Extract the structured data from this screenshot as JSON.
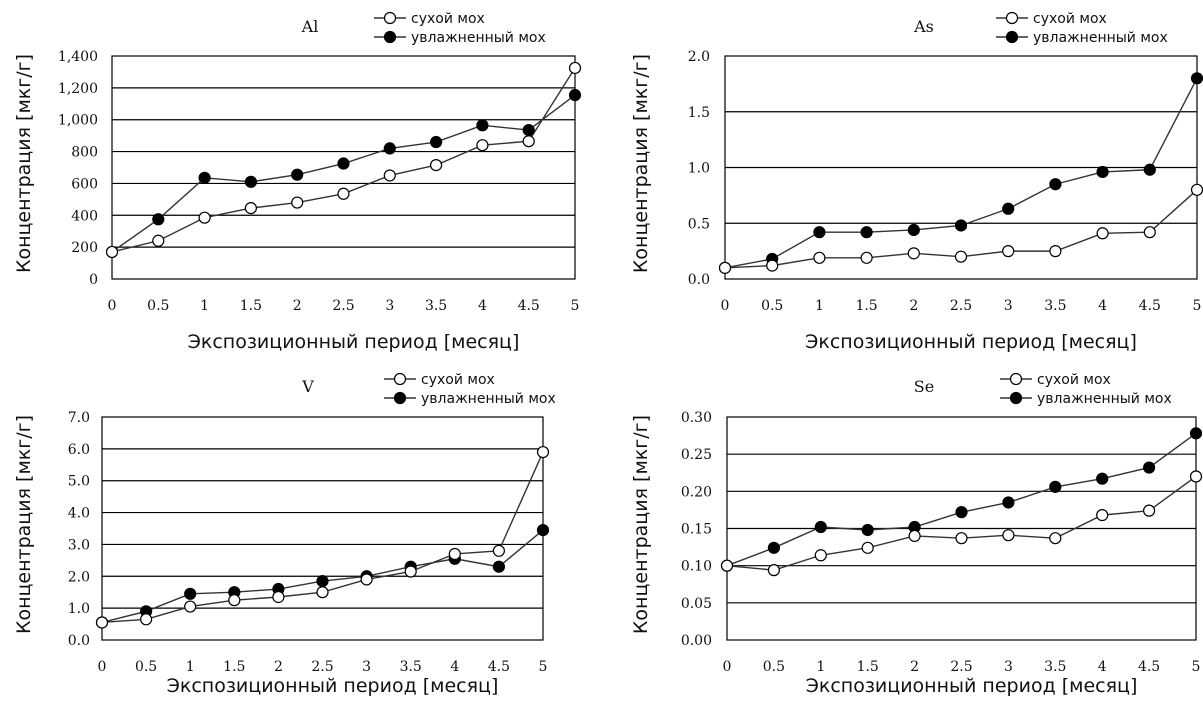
{
  "chart_data": [
    {
      "type": "line",
      "title": "Al",
      "xlabel": "Экспозиционный период [месяц]",
      "ylabel": "Концентрация [мкг/г]",
      "x": [
        0,
        0.5,
        1,
        1.5,
        2,
        2.5,
        3,
        3.5,
        4,
        4.5,
        5
      ],
      "x_tick_labels": [
        "0",
        "0.5",
        "1",
        "1.5",
        "2",
        "2.5",
        "3",
        "3.5",
        "4",
        "4.5",
        "5"
      ],
      "ylim": [
        0,
        1400
      ],
      "y_ticks": [
        0,
        200,
        400,
        600,
        800,
        1000,
        1200,
        1400
      ],
      "y_tick_labels": [
        "0",
        "200",
        "400",
        "600",
        "800",
        "1,000",
        "1,200",
        "1,400"
      ],
      "grid": "horizontal",
      "legend": "top-right",
      "series": [
        {
          "name": "сухой мох",
          "marker": "open",
          "values": [
            170,
            240,
            385,
            445,
            480,
            535,
            650,
            715,
            840,
            865,
            1325
          ]
        },
        {
          "name": "увлажненный мох",
          "marker": "filled",
          "values": [
            170,
            375,
            635,
            610,
            655,
            725,
            820,
            860,
            965,
            935,
            1155
          ]
        }
      ]
    },
    {
      "type": "line",
      "title": "As",
      "xlabel": "Экспозиционный период [месяц]",
      "ylabel": "Концентрация [мкг/г]",
      "x": [
        0,
        0.5,
        1,
        1.5,
        2,
        2.5,
        3,
        3.5,
        4,
        4.5,
        5
      ],
      "x_tick_labels": [
        "0",
        "0.5",
        "1",
        "1.5",
        "2",
        "2.5",
        "3",
        "3.5",
        "4",
        "4.5",
        "5"
      ],
      "ylim": [
        0,
        2.0
      ],
      "y_ticks": [
        0,
        0.5,
        1.0,
        1.5,
        2.0
      ],
      "y_tick_labels": [
        "0.0",
        "0.5",
        "1.0",
        "1.5",
        "2.0"
      ],
      "grid": "horizontal",
      "legend": "top-right",
      "series": [
        {
          "name": "сухой мох",
          "marker": "open",
          "values": [
            0.1,
            0.12,
            0.19,
            0.19,
            0.23,
            0.2,
            0.25,
            0.25,
            0.41,
            0.42,
            0.8
          ]
        },
        {
          "name": "увлажненный мох",
          "marker": "filled",
          "values": [
            0.1,
            0.18,
            0.42,
            0.42,
            0.44,
            0.48,
            0.63,
            0.85,
            0.96,
            0.98,
            1.8
          ]
        }
      ]
    },
    {
      "type": "line",
      "title": "V",
      "xlabel": "Экспозиционный период [месяц]",
      "ylabel": "Концентрация [мкг/г]",
      "x": [
        0,
        0.5,
        1,
        1.5,
        2,
        2.5,
        3,
        3.5,
        4,
        4.5,
        5
      ],
      "x_tick_labels": [
        "0",
        "0.5",
        "1",
        "1.5",
        "2",
        "2.5",
        "3",
        "3.5",
        "4",
        "4.5",
        "5"
      ],
      "ylim": [
        0,
        7.0
      ],
      "y_ticks": [
        0,
        1,
        2,
        3,
        4,
        5,
        6,
        7
      ],
      "y_tick_labels": [
        "0.0",
        "1.0",
        "2.0",
        "3.0",
        "4.0",
        "5.0",
        "6.0",
        "7.0"
      ],
      "grid": "horizontal",
      "legend": "top-right",
      "series": [
        {
          "name": "сухой мох",
          "marker": "open",
          "values": [
            0.55,
            0.65,
            1.05,
            1.25,
            1.35,
            1.5,
            1.9,
            2.15,
            2.7,
            2.8,
            5.9
          ]
        },
        {
          "name": "увлажненный мох",
          "marker": "filled",
          "values": [
            0.55,
            0.9,
            1.45,
            1.5,
            1.6,
            1.85,
            2.0,
            2.3,
            2.55,
            2.3,
            3.45
          ]
        }
      ]
    },
    {
      "type": "line",
      "title": "Se",
      "xlabel": "Экспозиционный период [месяц]",
      "ylabel": "Концентрация [мкг/г]",
      "x": [
        0,
        0.5,
        1,
        1.5,
        2,
        2.5,
        3,
        3.5,
        4,
        4.5,
        5
      ],
      "x_tick_labels": [
        "0",
        "0.5",
        "1",
        "1.5",
        "2",
        "2.5",
        "3",
        "3.5",
        "4",
        "4.5",
        "5"
      ],
      "ylim": [
        0,
        0.3
      ],
      "y_ticks": [
        0,
        0.05,
        0.1,
        0.15,
        0.2,
        0.25,
        0.3
      ],
      "y_tick_labels": [
        "0.00",
        "0.05",
        "0.10",
        "0.15",
        "0.20",
        "0.25",
        "0.30"
      ],
      "grid": "horizontal",
      "legend": "top-right",
      "series": [
        {
          "name": "сухой мох",
          "marker": "open",
          "values": [
            0.1,
            0.094,
            0.114,
            0.124,
            0.14,
            0.137,
            0.141,
            0.137,
            0.168,
            0.174,
            0.22
          ]
        },
        {
          "name": "увлажненный мох",
          "marker": "filled",
          "values": [
            0.1,
            0.124,
            0.152,
            0.148,
            0.152,
            0.172,
            0.185,
            0.206,
            0.217,
            0.232,
            0.278
          ]
        }
      ]
    }
  ]
}
